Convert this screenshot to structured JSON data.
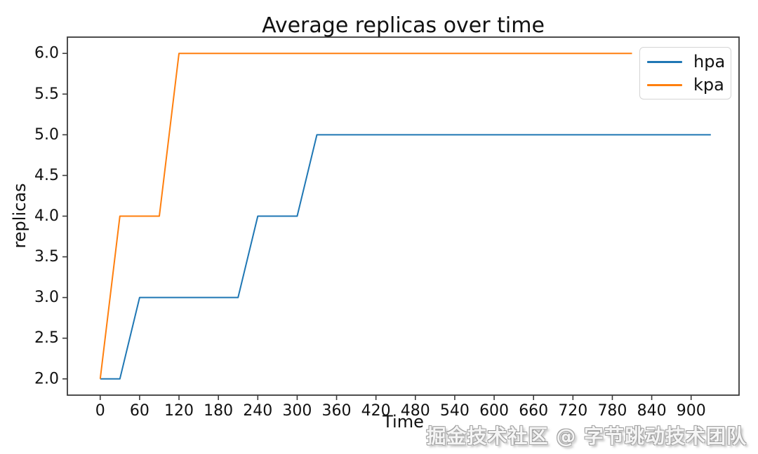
{
  "watermark": "掘金技术社区 @ 字节跳动技术团队",
  "chart_data": {
    "type": "line",
    "title": "Average replicas over time",
    "xlabel": "Time",
    "ylabel": "replicas",
    "xlim": [
      -50,
      973
    ],
    "ylim": [
      1.8,
      6.2
    ],
    "x_ticks": [
      0,
      60,
      120,
      180,
      240,
      300,
      360,
      420,
      480,
      540,
      600,
      660,
      720,
      780,
      840,
      900
    ],
    "y_ticks": [
      2.0,
      2.5,
      3.0,
      3.5,
      4.0,
      4.5,
      5.0,
      5.5,
      6.0
    ],
    "grid": false,
    "legend_position": "upper right",
    "line_width": 2,
    "axis_color": "#3a3a3a",
    "text_color": "#111111",
    "series": [
      {
        "name": "hpa",
        "color": "#1f77b4",
        "points": [
          [
            0,
            2
          ],
          [
            30,
            2
          ],
          [
            60,
            3
          ],
          [
            210,
            3
          ],
          [
            240,
            4
          ],
          [
            300,
            4
          ],
          [
            330,
            5
          ],
          [
            930,
            5
          ]
        ]
      },
      {
        "name": "kpa",
        "color": "#ff7f0e",
        "points": [
          [
            0,
            2
          ],
          [
            30,
            4
          ],
          [
            90,
            4
          ],
          [
            120,
            6
          ],
          [
            810,
            6
          ]
        ]
      }
    ]
  }
}
